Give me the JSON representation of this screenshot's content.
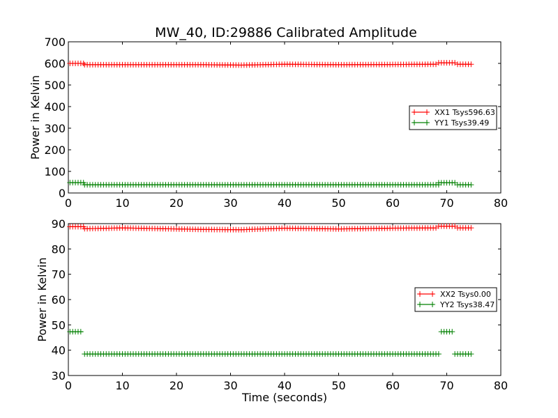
{
  "title": "MW_40, ID:29886 Calibrated Amplitude",
  "chart_data": [
    {
      "type": "line",
      "ylabel": "Power in Kelvin",
      "xlabel": "",
      "xlim": [
        0,
        80
      ],
      "ylim": [
        0,
        700
      ],
      "xticks": [
        "0",
        "10",
        "20",
        "30",
        "40",
        "50",
        "60",
        "70",
        "80"
      ],
      "yticks": [
        "0",
        "100",
        "200",
        "300",
        "400",
        "500",
        "600",
        "700"
      ],
      "legend": "center-right",
      "marker": "+",
      "series": [
        {
          "name": "XX1 Tsys596.63",
          "color": "#ff0000",
          "segments": [
            {
              "x": [
                0.3,
                3.0
              ],
              "y": [
                600,
                600
              ]
            },
            {
              "x": [
                3.0,
                25.0,
                32.0,
                40.0,
                50.0,
                60.0,
                68.0
              ],
              "y": [
                594,
                594,
                592,
                596,
                594,
                595,
                596
              ]
            },
            {
              "x": [
                68.5,
                71.5
              ],
              "y": [
                603,
                603
              ]
            },
            {
              "x": [
                72.0,
                74.5
              ],
              "y": [
                596,
                596
              ]
            }
          ]
        },
        {
          "name": "YY1 Tsys39.49",
          "color": "#008000",
          "segments": [
            {
              "x": [
                0.3,
                3.0
              ],
              "y": [
                48,
                48
              ]
            },
            {
              "x": [
                3.0,
                68.5
              ],
              "y": [
                38,
                38
              ]
            },
            {
              "x": [
                68.5,
                71.5
              ],
              "y": [
                47,
                47
              ]
            },
            {
              "x": [
                72.0,
                74.5
              ],
              "y": [
                38,
                38
              ]
            }
          ]
        }
      ]
    },
    {
      "type": "line",
      "ylabel": "Power in Kelvin",
      "xlabel": "Time (seconds)",
      "xlim": [
        0,
        80
      ],
      "ylim": [
        30,
        90
      ],
      "xticks": [
        "0",
        "10",
        "20",
        "30",
        "40",
        "50",
        "60",
        "70",
        "80"
      ],
      "yticks": [
        "30",
        "40",
        "50",
        "60",
        "70",
        "80",
        "90"
      ],
      "legend": "center-right",
      "marker": "+",
      "series": [
        {
          "name": "XX2 Tsys0.00",
          "color": "#ff0000",
          "segments": [
            {
              "x": [
                0.3,
                3.0
              ],
              "y": [
                88.8,
                88.8
              ]
            },
            {
              "x": [
                3.0,
                10.0,
                25.0,
                32.0,
                40.0,
                50.0,
                60.0,
                68.0
              ],
              "y": [
                88.0,
                88.3,
                87.7,
                87.6,
                88.2,
                87.9,
                88.2,
                88.3
              ]
            },
            {
              "x": [
                68.5,
                71.5
              ],
              "y": [
                89.0,
                89.0
              ]
            },
            {
              "x": [
                72.0,
                74.5
              ],
              "y": [
                88.3,
                88.3
              ]
            }
          ]
        },
        {
          "name": "YY2 Tsys38.47",
          "color": "#008000",
          "segments": [
            {
              "x": [
                0.3,
                2.7
              ],
              "y": [
                47.3,
                47.3
              ]
            },
            {
              "x": [
                3.0,
                68.5
              ],
              "y": [
                38.5,
                38.5
              ]
            },
            {
              "x": [
                69.0,
                71.0
              ],
              "y": [
                47.3,
                47.3
              ]
            },
            {
              "x": [
                71.5,
                74.5
              ],
              "y": [
                38.5,
                38.5
              ]
            }
          ]
        }
      ]
    }
  ]
}
